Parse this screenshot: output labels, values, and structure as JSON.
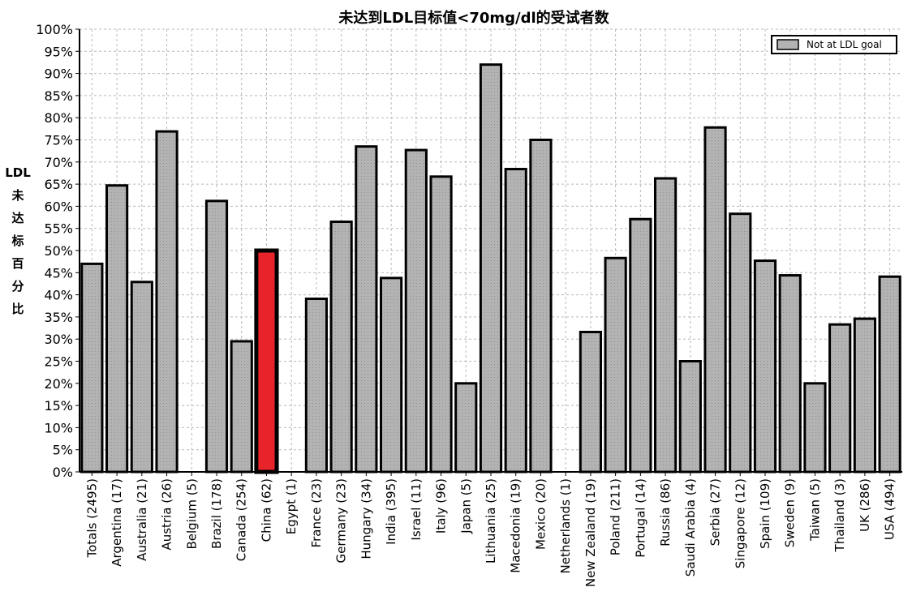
{
  "chart_data": {
    "type": "bar",
    "title": "未达到LDL目标值<70mg/dl的受试者数",
    "ylabel": "LDL未达标百分比",
    "ylabel_lines": [
      "LDL",
      "未",
      "达",
      "标",
      "百",
      "分",
      "比"
    ],
    "ylim": [
      0,
      100
    ],
    "yticks": [
      "0%",
      "5%",
      "10%",
      "15%",
      "20%",
      "25%",
      "30%",
      "35%",
      "40%",
      "45%",
      "50%",
      "55%",
      "60%",
      "65%",
      "70%",
      "75%",
      "80%",
      "85%",
      "90%",
      "95%",
      "100%"
    ],
    "grid": true,
    "legend": {
      "placement": "top-right",
      "entries": [
        "Not at LDL goal"
      ]
    },
    "categories": [
      "Totals (2495)",
      "Argentina (17)",
      "Australia (21)",
      "Austria (26)",
      "Belgium (5)",
      "Brazil (178)",
      "Canada (254)",
      "China (62)",
      "Egypt (1)",
      "France (23)",
      "Germany (23)",
      "Hungary (34)",
      "India (395)",
      "Israel (11)",
      "Italy (96)",
      "Japan (5)",
      "Lithuania (25)",
      "Macedonia (19)",
      "Mexico (20)",
      "Netherlands (1)",
      "New Zealand (19)",
      "Poland (211)",
      "Portugal (14)",
      "Russia (86)",
      "Saudi Arabia (4)",
      "Serbia (27)",
      "Singapore (12)",
      "Spain (109)",
      "Sweden (9)",
      "Taiwan (5)",
      "Thailand (3)",
      "UK (286)",
      "USA (494)"
    ],
    "series": [
      {
        "name": "Not at LDL goal",
        "values": [
          47,
          64.7,
          42.9,
          76.9,
          0,
          61.2,
          29.5,
          50.0,
          0,
          39.1,
          56.5,
          73.5,
          43.8,
          72.7,
          66.7,
          20.0,
          92.0,
          68.4,
          75.0,
          0,
          31.6,
          48.3,
          57.1,
          66.3,
          25.0,
          77.8,
          58.3,
          47.7,
          44.4,
          20.0,
          33.3,
          34.6,
          44.1
        ]
      }
    ],
    "colors": {
      "bar": "#b3b3b3",
      "highlight": "#e8232a",
      "edge": "#000000"
    },
    "highlight_category": "China (62)"
  }
}
